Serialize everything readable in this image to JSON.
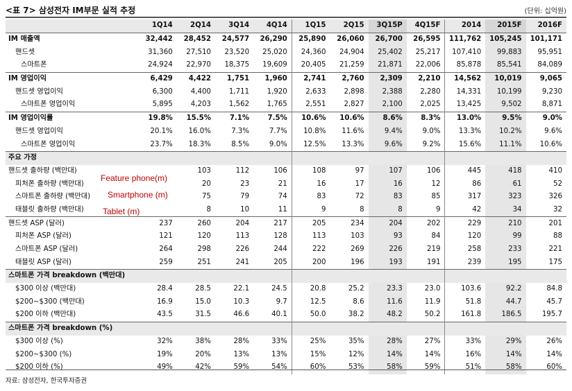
{
  "title": "<표 7> 삼성전자 IM부문 실적 추정",
  "unit": "(단위: 십억원)",
  "source": "자료: 삼성전자, 한국투자증권",
  "columns": [
    "1Q14",
    "2Q14",
    "3Q14",
    "4Q14",
    "1Q15",
    "2Q15",
    "3Q15P",
    "4Q15F",
    "2014",
    "2015F",
    "2016F"
  ],
  "annotations": {
    "feature_phone": "Feature phone(m)",
    "smartphone": "Smartphone (m)",
    "tablet": "Tablet (m)"
  },
  "rows": [
    {
      "label": "IM 매출액",
      "values": [
        "32,442",
        "28,452",
        "24,577",
        "26,290",
        "25,890",
        "26,060",
        "26,700",
        "26,595",
        "111,762",
        "105,245",
        "101,171"
      ]
    },
    {
      "label": "핸드셋",
      "values": [
        "31,360",
        "27,510",
        "23,520",
        "25,020",
        "24,360",
        "24,904",
        "25,402",
        "25,217",
        "107,410",
        "99,883",
        "95,951"
      ]
    },
    {
      "label": "스마트폰",
      "values": [
        "24,924",
        "22,970",
        "18,375",
        "19,609",
        "20,405",
        "21,259",
        "21,871",
        "22,006",
        "85,878",
        "85,541",
        "84,089"
      ]
    },
    {
      "label": "IM 영업이익",
      "values": [
        "6,429",
        "4,422",
        "1,751",
        "1,960",
        "2,741",
        "2,760",
        "2,309",
        "2,210",
        "14,562",
        "10,019",
        "9,065"
      ]
    },
    {
      "label": "핸드셋 영업이익",
      "values": [
        "6,300",
        "4,400",
        "1,711",
        "1,920",
        "2,633",
        "2,898",
        "2,388",
        "2,280",
        "14,331",
        "10,199",
        "9,230"
      ]
    },
    {
      "label": "스마트폰 영업이익",
      "values": [
        "5,895",
        "4,203",
        "1,562",
        "1,765",
        "2,551",
        "2,827",
        "2,100",
        "2,025",
        "13,425",
        "9,502",
        "8,871"
      ]
    },
    {
      "label": "IM 영업이익률",
      "values": [
        "19.8%",
        "15.5%",
        "7.1%",
        "7.5%",
        "10.6%",
        "10.6%",
        "8.6%",
        "8.3%",
        "13.0%",
        "9.5%",
        "9.0%"
      ]
    },
    {
      "label": "핸드셋 영업이익",
      "values": [
        "20.1%",
        "16.0%",
        "7.3%",
        "7.7%",
        "10.8%",
        "11.6%",
        "9.4%",
        "9.0%",
        "13.3%",
        "10.2%",
        "9.6%"
      ]
    },
    {
      "label": "스마트폰 영업이익",
      "values": [
        "23.7%",
        "18.3%",
        "8.5%",
        "9.0%",
        "12.5%",
        "13.3%",
        "9.6%",
        "9.2%",
        "15.6%",
        "11.1%",
        "10.6%"
      ]
    },
    {
      "label": "주요 가정",
      "values": [
        "",
        "",
        "",
        "",
        "",
        "",
        "",
        "",
        "",
        "",
        ""
      ]
    },
    {
      "label": "핸드셋 출하량 (백만대)",
      "values": [
        "",
        "103",
        "112",
        "106",
        "108",
        "97",
        "107",
        "106",
        "445",
        "418",
        "410"
      ]
    },
    {
      "label": "피처폰 출하량 (백만대)",
      "values": [
        "",
        "20",
        "23",
        "21",
        "16",
        "17",
        "16",
        "12",
        "86",
        "61",
        "52"
      ]
    },
    {
      "label": "스마트폰 출하량 (백만대)",
      "values": [
        "",
        "75",
        "79",
        "74",
        "83",
        "72",
        "83",
        "85",
        "317",
        "323",
        "326"
      ]
    },
    {
      "label": "태블릿 출하량 (백만대)",
      "values": [
        "",
        "8",
        "10",
        "11",
        "9",
        "8",
        "8",
        "9",
        "42",
        "34",
        "32"
      ]
    },
    {
      "label": "핸드셋 ASP (달러)",
      "values": [
        "237",
        "260",
        "204",
        "217",
        "205",
        "234",
        "204",
        "202",
        "229",
        "210",
        "201"
      ]
    },
    {
      "label": "피처폰 ASP (달러)",
      "values": [
        "121",
        "120",
        "113",
        "128",
        "113",
        "103",
        "93",
        "84",
        "120",
        "99",
        "88"
      ]
    },
    {
      "label": "스마트폰 ASP (달러)",
      "values": [
        "264",
        "298",
        "226",
        "244",
        "222",
        "269",
        "226",
        "219",
        "258",
        "233",
        "221"
      ]
    },
    {
      "label": "태블릿 ASP (달러)",
      "values": [
        "259",
        "251",
        "241",
        "205",
        "200",
        "196",
        "193",
        "191",
        "239",
        "195",
        "175"
      ]
    },
    {
      "label": "스마트폰 가격 breakdown (백만대)",
      "values": [
        "",
        "",
        "",
        "",
        "",
        "",
        "",
        "",
        "",
        "",
        ""
      ]
    },
    {
      "label": "$300 이상 (백만대)",
      "values": [
        "28.4",
        "28.5",
        "22.1",
        "24.5",
        "20.8",
        "25.2",
        "23.3",
        "23.0",
        "103.6",
        "92.2",
        "84.8"
      ]
    },
    {
      "label": "$200~$300 (백만대)",
      "values": [
        "16.9",
        "15.0",
        "10.3",
        "9.7",
        "12.5",
        "8.6",
        "11.6",
        "11.9",
        "51.8",
        "44.7",
        "45.7"
      ]
    },
    {
      "label": "$200 이하 (백만대)",
      "values": [
        "43.5",
        "31.5",
        "46.6",
        "40.1",
        "50.0",
        "38.2",
        "48.2",
        "50.2",
        "161.8",
        "186.5",
        "195.7"
      ]
    },
    {
      "label": "스마트폰 가격 breakdown (%)",
      "values": [
        "",
        "",
        "",
        "",
        "",
        "",
        "",
        "",
        "",
        "",
        ""
      ]
    },
    {
      "label": "$300 이상 (%)",
      "values": [
        "32%",
        "38%",
        "28%",
        "33%",
        "25%",
        "35%",
        "28%",
        "27%",
        "33%",
        "29%",
        "26%"
      ]
    },
    {
      "label": "$200~$300 (%)",
      "values": [
        "19%",
        "20%",
        "13%",
        "13%",
        "15%",
        "12%",
        "14%",
        "14%",
        "16%",
        "14%",
        "14%"
      ]
    },
    {
      "label": "$200 이하 (%)",
      "values": [
        "49%",
        "42%",
        "59%",
        "54%",
        "60%",
        "53%",
        "58%",
        "59%",
        "51%",
        "58%",
        "60%"
      ]
    }
  ]
}
